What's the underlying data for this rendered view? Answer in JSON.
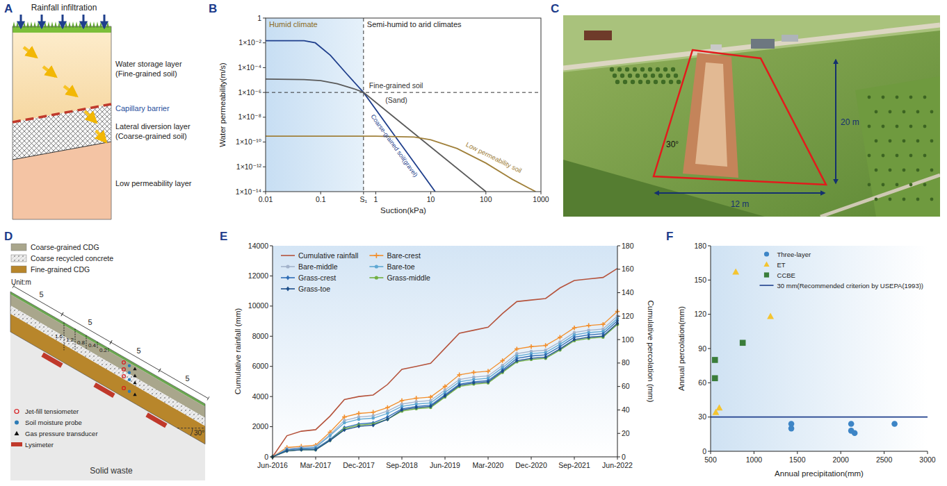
{
  "diagram_a": {
    "label": "A",
    "rain": "Rainfall infiltration",
    "layers": [
      {
        "name": "Water storage layer",
        "material": "(Fine-grained soil)"
      },
      {
        "name": "Lateral diversion layer",
        "material": "(Coarse-grained soil)"
      },
      {
        "name": "Low permeability layer"
      }
    ],
    "barrier": "Capillary barrier"
  },
  "photo_c": {
    "label": "C",
    "angle": "30°",
    "length": "20 m",
    "width": "12 m"
  },
  "diagram_d": {
    "label": "D",
    "materials": [
      "Coarse-grained CDG",
      "Coarse recycled concrete",
      "Fine-grained CDG"
    ],
    "unit": "Unit:m",
    "segments": [
      5,
      5,
      5,
      5
    ],
    "depths": [
      1.6,
      1.2,
      0.8,
      0.4,
      0.2
    ],
    "instruments": [
      "Jet-fill tensiometer",
      "Soil moisture probe",
      "Gas pressure transducer",
      "Lysimeter"
    ],
    "angle": "30°",
    "base": "Solid waste"
  },
  "chart_data": [
    {
      "label": "B",
      "type": "line",
      "log": true,
      "xlabel": "Suction(kPa)",
      "ylabel": "Water permeability(m/s)",
      "xlim": [
        0.01,
        1000
      ],
      "ylim": [
        1e-14,
        1
      ],
      "xticks": [
        0.01,
        0.1,
        {
          "value": 0.6,
          "label": "S₁"
        },
        1,
        10,
        100,
        1000
      ],
      "yticks": [
        {
          "value": 1e-14,
          "label": "1×10⁻¹⁴"
        },
        {
          "value": 1e-12,
          "label": "1×10⁻¹²"
        },
        {
          "value": 1e-10,
          "label": "1×10⁻¹⁰"
        },
        {
          "value": 1e-08,
          "label": "1×10⁻⁸"
        },
        {
          "value": 1e-06,
          "label": "1×10⁻⁶"
        },
        {
          "value": 0.0001,
          "label": "1×10⁻⁴"
        },
        {
          "value": 0.01,
          "label": "1×10⁻²"
        },
        1
      ],
      "zones": [
        "Humid climate",
        "Semi-humid to arid climates"
      ],
      "ref_lines": [
        {
          "axis": "x",
          "value": 0.6
        },
        {
          "axis": "y",
          "value": 1e-06
        }
      ],
      "annotations": [
        {
          "text": "(Sand)",
          "x": 1.5,
          "y": 1.5e-07
        }
      ],
      "series": [
        {
          "name": "Coarse-grained soil(gravel)",
          "color": "#1f3f8c",
          "x": [
            0.01,
            0.05,
            0.08,
            0.15,
            0.3,
            0.6,
            2,
            5,
            12
          ],
          "values": [
            0.015,
            0.015,
            0.01,
            0.001,
            3e-05,
            1e-06,
            6e-10,
            2.2e-12,
            1e-14
          ]
        },
        {
          "name": "Fine-grained soil",
          "color": "#5a5a5a",
          "x": [
            0.01,
            0.05,
            0.1,
            0.2,
            0.4,
            0.6,
            2,
            10,
            100
          ],
          "values": [
            1.2e-05,
            1.1e-05,
            9e-06,
            5e-06,
            2e-06,
            1e-06,
            1.3e-08,
            4e-11,
            1e-14
          ]
        },
        {
          "name": "Low permeability soil",
          "color": "#a0803a",
          "x": [
            0.01,
            1,
            5,
            10,
            30,
            100,
            300,
            800
          ],
          "values": [
            3e-10,
            3e-10,
            2.5e-10,
            1.5e-10,
            3e-11,
            2e-12,
            1e-13,
            1e-14
          ]
        }
      ]
    },
    {
      "label": "E",
      "type": "line",
      "ylabel": "Cumulative rainfall (mm)",
      "y2label": "Cumulative percolation (mm)",
      "x": [
        "2016-06",
        "2016-09",
        "2016-12",
        "2017-03",
        "2017-06",
        "2017-09",
        "2017-12",
        "2018-03",
        "2018-06",
        "2018-09",
        "2018-12",
        "2019-03",
        "2019-06",
        "2019-09",
        "2019-12",
        "2020-03",
        "2020-06",
        "2020-09",
        "2020-12",
        "2021-03",
        "2021-06",
        "2021-09",
        "2021-12",
        "2022-03",
        "2022-06"
      ],
      "xlim": [
        "2016-06",
        "2022-06"
      ],
      "xticks": [
        {
          "value": "2016-06",
          "label": "Jun-2016"
        },
        {
          "value": "2017-03",
          "label": "Mar-2017"
        },
        {
          "value": "2017-12",
          "label": "Dec-2017"
        },
        {
          "value": "2018-09",
          "label": "Sep-2018"
        },
        {
          "value": "2019-06",
          "label": "Jun-2019"
        },
        {
          "value": "2020-03",
          "label": "Mar-2020"
        },
        {
          "value": "2020-12",
          "label": "Dec-2020"
        },
        {
          "value": "2021-09",
          "label": "Sep-2021"
        },
        {
          "value": "2022-06",
          "label": "Jun-2022"
        }
      ],
      "ylim": [
        0,
        14000
      ],
      "yticks": [
        0,
        2000,
        4000,
        6000,
        8000,
        10000,
        12000,
        14000
      ],
      "y2lim": [
        0,
        180
      ],
      "y2ticks": [
        0,
        20,
        40,
        60,
        80,
        100,
        120,
        140,
        160,
        180
      ],
      "legend": "top-left",
      "series": [
        {
          "name": "Cumulative rainfall",
          "color": "#b5533c",
          "marker": "none",
          "values": [
            0,
            1400,
            1700,
            1800,
            2700,
            3800,
            4000,
            4100,
            4800,
            5800,
            6000,
            6200,
            7200,
            8200,
            8400,
            8600,
            9500,
            10300,
            10400,
            10500,
            11200,
            11700,
            11800,
            11900,
            12500
          ]
        },
        {
          "name": "Bare-crest",
          "color": "#f28e2b",
          "marker": "plus",
          "axis": "y2",
          "values": [
            0,
            8,
            9,
            10,
            21,
            34,
            37,
            38,
            42,
            48,
            50,
            51,
            60,
            70,
            72,
            73,
            82,
            92,
            94,
            95,
            102,
            110,
            112,
            113,
            124
          ]
        },
        {
          "name": "Bare-middle",
          "color": "#a3b3cb",
          "marker": "circle",
          "axis": "y2",
          "values": [
            0,
            7,
            8,
            9,
            19,
            31,
            34,
            35,
            39,
            45,
            47,
            48,
            57,
            66,
            68,
            69,
            78,
            88,
            90,
            91,
            98,
            106,
            108,
            109,
            120
          ]
        },
        {
          "name": "Bare-toe",
          "color": "#5fa8d3",
          "marker": "circle",
          "axis": "y2",
          "values": [
            0,
            6,
            7,
            8,
            18,
            29,
            32,
            33,
            37,
            43,
            45,
            46,
            55,
            64,
            66,
            67,
            76,
            86,
            88,
            89,
            96,
            104,
            106,
            107,
            118
          ]
        },
        {
          "name": "Grass-crest",
          "color": "#2f6db5",
          "marker": "diamond",
          "axis": "y2",
          "values": [
            0,
            6,
            7,
            7,
            15,
            25,
            28,
            29,
            34,
            41,
            43,
            44,
            53,
            62,
            64,
            65,
            74,
            84,
            86,
            87,
            94,
            102,
            104,
            105,
            116
          ]
        },
        {
          "name": "Grass-middle",
          "color": "#72b043",
          "marker": "circle",
          "axis": "y2",
          "values": [
            0,
            5,
            6,
            6,
            14,
            24,
            27,
            28,
            32,
            39,
            41,
            42,
            51,
            60,
            62,
            63,
            72,
            81,
            83,
            84,
            91,
            99,
            101,
            102,
            113
          ]
        },
        {
          "name": "Grass-toe",
          "color": "#1d4e89",
          "marker": "diamond",
          "axis": "y2",
          "values": [
            0,
            5,
            6,
            6,
            14,
            23,
            26,
            27,
            32,
            40,
            42,
            43,
            52,
            61,
            63,
            64,
            73,
            82,
            84,
            85,
            92,
            100,
            102,
            103,
            114
          ]
        }
      ]
    },
    {
      "label": "F",
      "type": "scatter",
      "xlabel": "Annual precipitation(mm)",
      "ylabel": "Annual percolation(mm)",
      "xlim": [
        500,
        3000
      ],
      "ylim": [
        0,
        180
      ],
      "xticks": [
        500,
        1000,
        1500,
        2000,
        2500,
        3000
      ],
      "yticks": [
        0,
        30,
        60,
        90,
        120,
        150,
        180
      ],
      "legend": "top-right",
      "series": [
        {
          "name": "Three-layer",
          "color": "#3d85c6",
          "marker": "circle",
          "x": [
            1430,
            1430,
            2120,
            2120,
            2160,
            2620
          ],
          "values": [
            24,
            20,
            24,
            18,
            16,
            24
          ]
        },
        {
          "name": "ET",
          "color": "#f4c430",
          "marker": "triangle",
          "x": [
            560,
            600,
            790,
            1190
          ],
          "values": [
            34,
            38,
            157,
            118
          ]
        },
        {
          "name": "CCBE",
          "color": "#3a7d3a",
          "marker": "square",
          "x": [
            550,
            550,
            870
          ],
          "values": [
            80,
            64,
            95
          ]
        },
        {
          "name": "30 mm(Recommended criterion by USEPA(1993))",
          "type": "line",
          "color": "#1f3f8c",
          "x": [
            500,
            3000
          ],
          "values": [
            30,
            30
          ]
        }
      ]
    }
  ]
}
